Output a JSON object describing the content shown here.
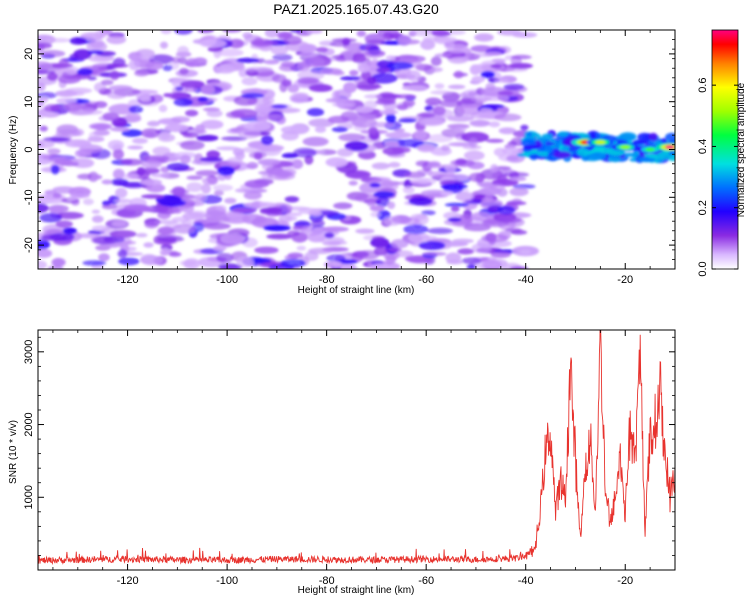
{
  "title": "PAZ1.2025.165.07.43.G20",
  "chart_data": [
    {
      "type": "heatmap",
      "xlabel": "Height of straight line (km)",
      "ylabel": "Frequency (Hz)",
      "xlim": [
        -138,
        -10
      ],
      "ylim": [
        -25,
        25
      ],
      "xticks": [
        -120,
        -100,
        -80,
        -60,
        -40,
        -20
      ],
      "yticks": [
        -20,
        -10,
        0,
        10,
        20
      ],
      "noise_region_x": [
        -138,
        -40
      ],
      "signal_region_x": [
        -40,
        -10
      ],
      "signal_band_hz": [
        -1.5,
        3.5
      ],
      "signal_peaks": [
        {
          "x": -28,
          "y": 1.5,
          "amplitude": 0.75
        },
        {
          "x": -25,
          "y": 1.5,
          "amplitude": 0.55
        },
        {
          "x": -20,
          "y": 0.5,
          "amplitude": 0.5
        },
        {
          "x": -15,
          "y": 0.0,
          "amplitude": 0.45
        },
        {
          "x": -11,
          "y": 0.5,
          "amplitude": 0.8
        }
      ],
      "colorbar": {
        "label": "Normalized spectral amplitude",
        "range": [
          0.0,
          0.78
        ],
        "ticks": [
          0.0,
          0.2,
          0.4,
          0.6
        ]
      }
    },
    {
      "type": "line",
      "xlabel": "Height of straight line (km)",
      "ylabel": "SNR (10 * v/v)",
      "xlim": [
        -138,
        -10
      ],
      "ylim": [
        0,
        3300
      ],
      "xticks": [
        -120,
        -100,
        -80,
        -60,
        -40,
        -20
      ],
      "yticks": [
        1000,
        2000,
        3000
      ],
      "color": "#e8332e",
      "series": [
        {
          "name": "",
          "x": [
            -138,
            -130,
            -120,
            -110,
            -100,
            -90,
            -80,
            -70,
            -60,
            -50,
            -42,
            -40,
            -38,
            -37,
            -36,
            -35,
            -34,
            -33,
            -32,
            -31,
            -30,
            -29,
            -28,
            -27,
            -26,
            -25,
            -24,
            -23,
            -22,
            -21,
            -20,
            -19,
            -18,
            -17,
            -16,
            -15,
            -14,
            -13,
            -12,
            -11,
            -10
          ],
          "y": [
            130,
            140,
            150,
            140,
            135,
            150,
            145,
            140,
            150,
            145,
            160,
            200,
            300,
            900,
            1600,
            1900,
            800,
            1200,
            1000,
            2800,
            1500,
            400,
            1400,
            1800,
            800,
            3200,
            1200,
            600,
            1000,
            1600,
            800,
            2000,
            1500,
            2900,
            600,
            1800,
            2000,
            2500,
            1600,
            1000,
            1400
          ]
        }
      ]
    }
  ]
}
